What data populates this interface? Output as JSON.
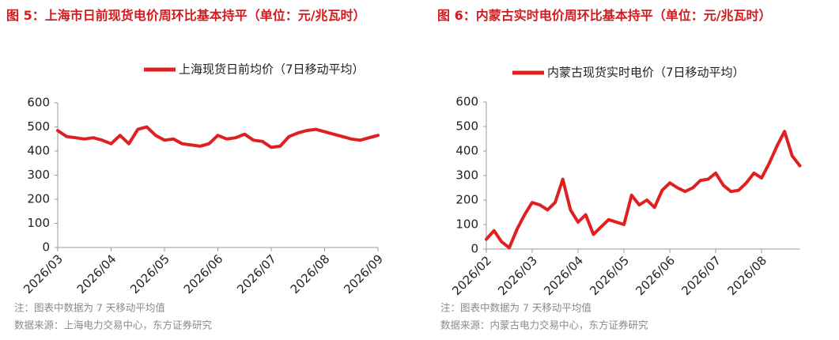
{
  "chart_data": [
    {
      "type": "line",
      "title": "图 5：上海市日前现货电价周环比基本持平（单位：元/兆瓦时）",
      "categories": [
        "2026/03",
        null,
        null,
        null,
        null,
        null,
        "2026/04",
        null,
        null,
        null,
        null,
        null,
        "2026/05",
        null,
        null,
        null,
        null,
        null,
        "2026/06",
        null,
        null,
        null,
        null,
        null,
        "2026/07",
        null,
        null,
        null,
        null,
        null,
        "2026/08",
        null,
        null,
        null,
        null,
        null,
        "2026/09"
      ],
      "series": [
        {
          "name": "上海现货日前均价（7日移动平均）",
          "color": "#e02020",
          "values": [
            485,
            460,
            455,
            450,
            455,
            445,
            430,
            465,
            430,
            490,
            500,
            465,
            445,
            450,
            430,
            425,
            420,
            430,
            465,
            450,
            455,
            470,
            445,
            440,
            415,
            420,
            460,
            475,
            485,
            490,
            480,
            470,
            460,
            450,
            445,
            455,
            465
          ]
        }
      ],
      "ylim": [
        0,
        600
      ],
      "yticks": [
        0,
        100,
        200,
        300,
        400,
        500,
        600
      ],
      "note": "注：图表中数据为 7 天移动平均值",
      "source": "数据来源：上海电力交易中心，东方证券研究"
    },
    {
      "type": "line",
      "title": "图 6：内蒙古实时电价周环比基本持平（单位：元/兆瓦时）",
      "categories": [
        "2026/02",
        null,
        null,
        null,
        null,
        null,
        "2026/03",
        null,
        null,
        null,
        null,
        null,
        "2026/04",
        null,
        null,
        null,
        null,
        null,
        "2026/05",
        null,
        null,
        null,
        null,
        null,
        "2026/06",
        null,
        null,
        null,
        null,
        null,
        "2026/07",
        null,
        null,
        null,
        null,
        null,
        "2026/08",
        null,
        null,
        null,
        null,
        null
      ],
      "series": [
        {
          "name": "内蒙古现货实时电价（7日移动平均）",
          "color": "#e02020",
          "values": [
            40,
            75,
            30,
            5,
            80,
            140,
            190,
            180,
            160,
            190,
            285,
            160,
            110,
            140,
            60,
            90,
            120,
            110,
            100,
            220,
            180,
            200,
            170,
            240,
            270,
            250,
            235,
            250,
            280,
            285,
            310,
            260,
            235,
            240,
            270,
            310,
            290,
            350,
            420,
            480,
            380,
            340
          ]
        }
      ],
      "ylim": [
        0,
        600
      ],
      "yticks": [
        0,
        100,
        200,
        300,
        400,
        500,
        600
      ],
      "note": "注：图表中数据为 7 天移动平均值",
      "source": "数据来源：内蒙古电力交易中心，东方证券研究"
    }
  ]
}
